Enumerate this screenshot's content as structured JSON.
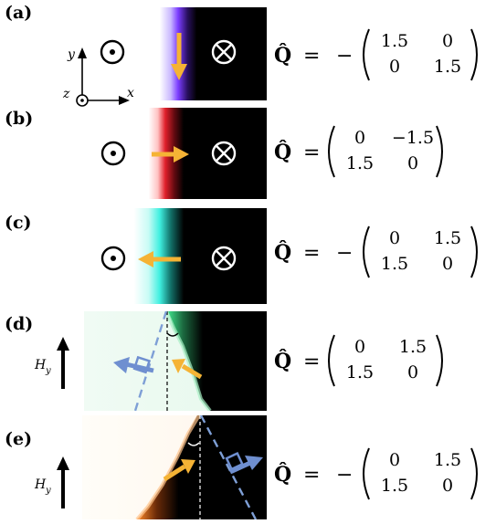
{
  "panels": [
    {
      "label": "(a)",
      "sign": "−",
      "matrix": [
        [
          "1.5",
          "0"
        ],
        [
          "0",
          "1.5"
        ]
      ],
      "edge_color": "#7b3cff"
    },
    {
      "label": "(b)",
      "sign": "",
      "matrix": [
        [
          "0",
          "−1.5"
        ],
        [
          "1.5",
          "0"
        ]
      ],
      "edge_color": "#e0202a"
    },
    {
      "label": "(c)",
      "sign": "−",
      "matrix": [
        [
          "0",
          "1.5"
        ],
        [
          "1.5",
          "0"
        ]
      ],
      "edge_color": "#3ff0e0"
    },
    {
      "label": "(d)",
      "sign": "",
      "matrix": [
        [
          "0",
          "1.5"
        ],
        [
          "1.5",
          "0"
        ]
      ],
      "edge_color": "#3fe08a"
    },
    {
      "label": "(e)",
      "sign": "−",
      "matrix": [
        [
          "0",
          "1.5"
        ],
        [
          "1.5",
          "0"
        ]
      ],
      "edge_color": "#ff8a2a"
    }
  ],
  "q_symbol": "Q̂",
  "equals": "=",
  "axes": {
    "x": "x",
    "y": "y",
    "z": "z"
  },
  "field_label": "H",
  "field_subscript": "y",
  "colors": {
    "arrow_orange": "#f5b335",
    "dashed_blue": "#7e9fd6",
    "arrow_blue": "#6f8fd0"
  }
}
